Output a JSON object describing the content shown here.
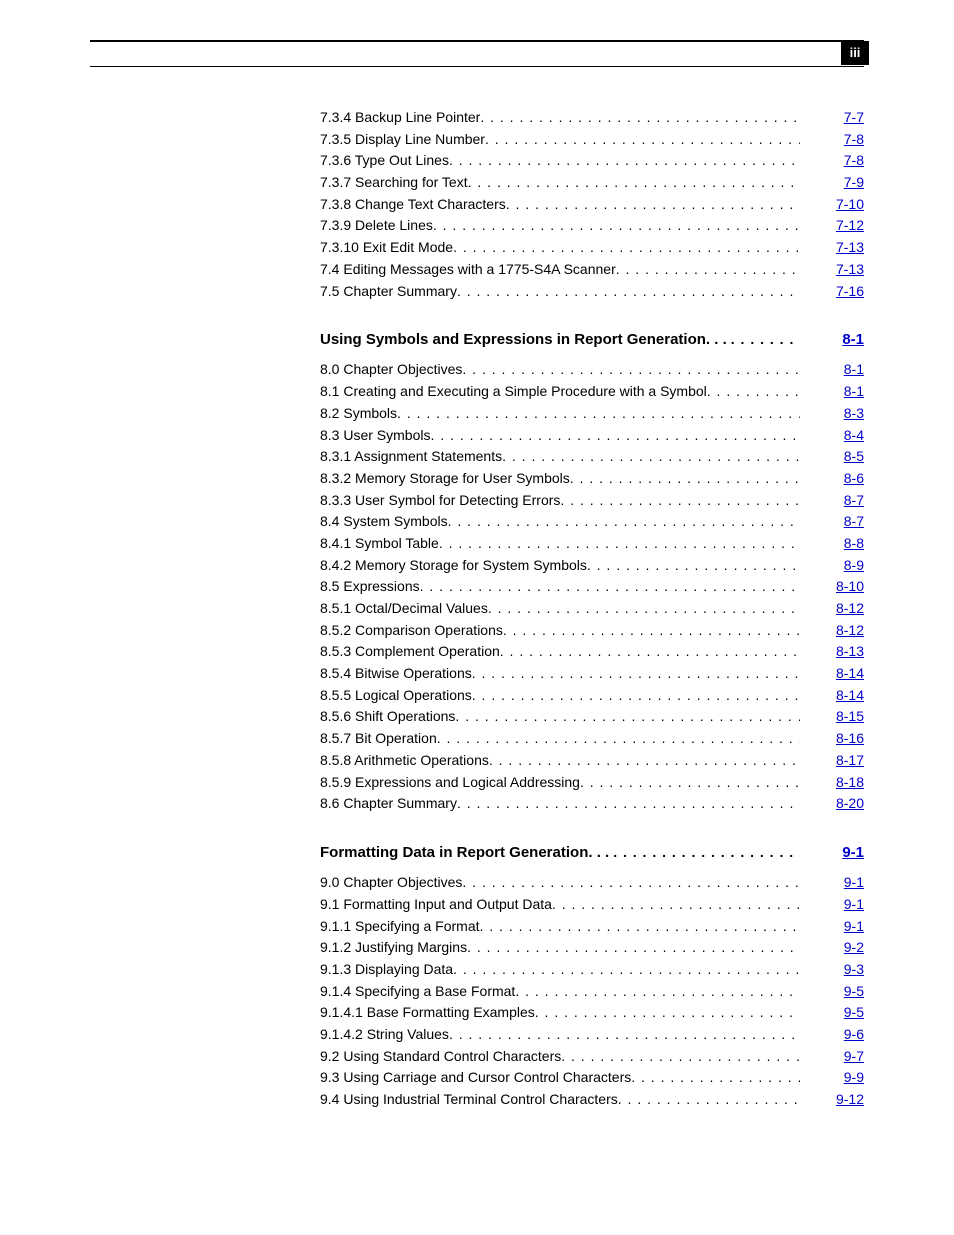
{
  "page_number": "iii",
  "sections": [
    {
      "title": null,
      "title_page": null,
      "items": [
        {
          "label": "7.3.4 Backup Line Pointer",
          "page": "7-7"
        },
        {
          "label": "7.3.5 Display Line Number",
          "page": "7-8"
        },
        {
          "label": "7.3.6 Type Out Lines",
          "page": "7-8"
        },
        {
          "label": "7.3.7 Searching for Text",
          "page": "7-9"
        },
        {
          "label": "7.3.8 Change Text Characters",
          "page": "7-10"
        },
        {
          "label": "7.3.9 Delete Lines",
          "page": "7-12"
        },
        {
          "label": "7.3.10 Exit Edit Mode",
          "page": "7-13"
        },
        {
          "label": "7.4 Editing Messages with a 1775-S4A Scanner",
          "page": "7-13"
        },
        {
          "label": "7.5 Chapter Summary",
          "page": "7-16"
        }
      ]
    },
    {
      "title": "Using Symbols and Expressions in Report Generation",
      "title_page": "8-1",
      "items": [
        {
          "label": "8.0  Chapter Objectives",
          "page": "8-1"
        },
        {
          "label": "8.1 Creating and Executing a Simple Procedure with a Symbol",
          "page": "8-1"
        },
        {
          "label": "8.2 Symbols",
          "page": "8-3"
        },
        {
          "label": "8.3 User Symbols",
          "page": "8-4"
        },
        {
          "label": "8.3.1 Assignment Statements",
          "page": "8-5"
        },
        {
          "label": "8.3.2 Memory Storage for User Symbols",
          "page": "8-6"
        },
        {
          "label": "8.3.3 User Symbol for Detecting Errors",
          "page": "8-7"
        },
        {
          "label": "8.4 System Symbols",
          "page": "8-7"
        },
        {
          "label": "8.4.1 Symbol Table",
          "page": "8-8"
        },
        {
          "label": "8.4.2 Memory Storage for System Symbols",
          "page": "8-9"
        },
        {
          "label": "8.5 Expressions",
          "page": "8-10"
        },
        {
          "label": "8.5.1 Octal/Decimal Values",
          "page": "8-12"
        },
        {
          "label": "8.5.2 Comparison Operations",
          "page": "8-12"
        },
        {
          "label": "8.5.3 Complement Operation",
          "page": "8-13"
        },
        {
          "label": "8.5.4 Bitwise Operations",
          "page": "8-14"
        },
        {
          "label": "8.5.5 Logical Operations",
          "page": "8-14"
        },
        {
          "label": "8.5.6 Shift Operations",
          "page": "8-15"
        },
        {
          "label": "8.5.7 Bit Operation",
          "page": "8-16"
        },
        {
          "label": "8.5.8 Arithmetic Operations",
          "page": "8-17"
        },
        {
          "label": "8.5.9 Expressions and Logical Addressing",
          "page": "8-18"
        },
        {
          "label": "8.6 Chapter Summary",
          "page": "8-20"
        }
      ]
    },
    {
      "title": "Formatting Data in Report Generation",
      "title_page": "9-1",
      "items": [
        {
          "label": "9.0  Chapter Objectives",
          "page": "9-1"
        },
        {
          "label": "9.1 Formatting Input and Output Data",
          "page": "9-1"
        },
        {
          "label": "9.1.1 Specifying a Format",
          "page": "9-1"
        },
        {
          "label": "9.1.2 Justifying Margins",
          "page": "9-2"
        },
        {
          "label": "9.1.3 Displaying Data",
          "page": "9-3"
        },
        {
          "label": "9.1.4 Specifying a Base Format",
          "page": "9-5"
        },
        {
          "label": "9.1.4.1 Base Formatting Examples",
          "page": "9-5"
        },
        {
          "label": "9.1.4.2 String Values",
          "page": "9-6"
        },
        {
          "label": "9.2 Using Standard Control Characters",
          "page": "9-7"
        },
        {
          "label": "9.3 Using Carriage and Cursor Control Characters",
          "page": "9-9"
        },
        {
          "label": "9.4 Using Industrial Terminal Control Characters",
          "page": "9-12"
        }
      ]
    }
  ]
}
